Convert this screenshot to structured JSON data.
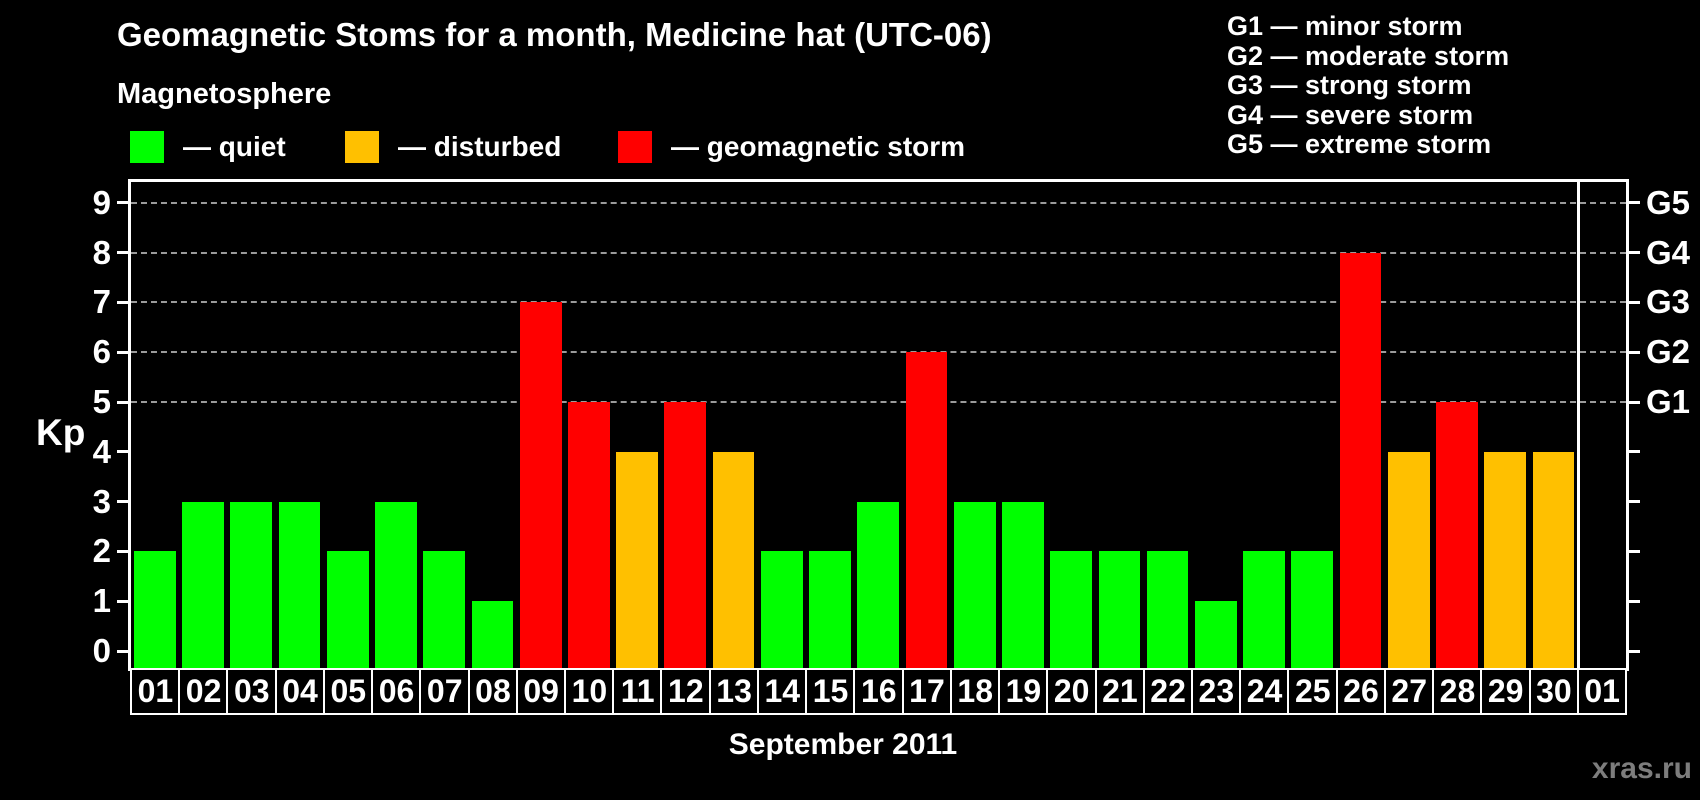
{
  "watermark": "xras.ru",
  "g_scale_legend": {
    "items": [
      {
        "label": "G1 — minor storm"
      },
      {
        "label": "G2 — moderate storm"
      },
      {
        "label": "G3 — strong storm"
      },
      {
        "label": "G4 — severe storm"
      },
      {
        "label": "G5 — extreme storm"
      }
    ]
  },
  "magnetosphere_legend": {
    "title": "Magnetosphere",
    "items": [
      {
        "label": "— quiet",
        "status": "quiet",
        "color": "#00ff00",
        "x": 130
      },
      {
        "label": "— disturbed",
        "status": "disturbed",
        "color": "#ffc000",
        "x": 345
      },
      {
        "label": "— geomagnetic storm",
        "status": "storm",
        "color": "#ff0000",
        "x": 618
      }
    ]
  },
  "chart_data": {
    "type": "bar",
    "title": "Geomagnetic Stoms for a month, Medicine hat (UTC-06)",
    "xlabel": "September 2011",
    "ylabel": "Kp",
    "ylim": [
      0,
      9.4
    ],
    "grid": "dashed horizontal at Kp 5-9",
    "legend_position": "top",
    "y_ticks": [
      0,
      1,
      2,
      3,
      4,
      5,
      6,
      7,
      8,
      9
    ],
    "gridlines_kp": [
      5,
      6,
      7,
      8,
      9
    ],
    "right_axis_labels": [
      {
        "kp": 5,
        "label": "G1"
      },
      {
        "kp": 6,
        "label": "G2"
      },
      {
        "kp": 7,
        "label": "G3"
      },
      {
        "kp": 8,
        "label": "G4"
      },
      {
        "kp": 9,
        "label": "G5"
      }
    ],
    "categories": [
      "01",
      "02",
      "03",
      "04",
      "05",
      "06",
      "07",
      "08",
      "09",
      "10",
      "11",
      "12",
      "13",
      "14",
      "15",
      "16",
      "17",
      "18",
      "19",
      "20",
      "21",
      "22",
      "23",
      "24",
      "25",
      "26",
      "27",
      "28",
      "29",
      "30",
      "01"
    ],
    "values": [
      2,
      3,
      3,
      3,
      2,
      3,
      2,
      1,
      7,
      5,
      4,
      5,
      4,
      2,
      2,
      3,
      6,
      3,
      3,
      2,
      2,
      2,
      1,
      2,
      2,
      8,
      4,
      5,
      4,
      4,
      null
    ],
    "statuses": [
      "quiet",
      "quiet",
      "quiet",
      "quiet",
      "quiet",
      "quiet",
      "quiet",
      "quiet",
      "storm",
      "storm",
      "disturbed",
      "storm",
      "disturbed",
      "quiet",
      "quiet",
      "quiet",
      "storm",
      "quiet",
      "quiet",
      "quiet",
      "quiet",
      "quiet",
      "quiet",
      "quiet",
      "quiet",
      "storm",
      "disturbed",
      "storm",
      "disturbed",
      "disturbed",
      null
    ],
    "status_colors": {
      "quiet": "#00ff00",
      "disturbed": "#ffc000",
      "storm": "#ff0000"
    },
    "month_boundary_after_index": 29
  }
}
